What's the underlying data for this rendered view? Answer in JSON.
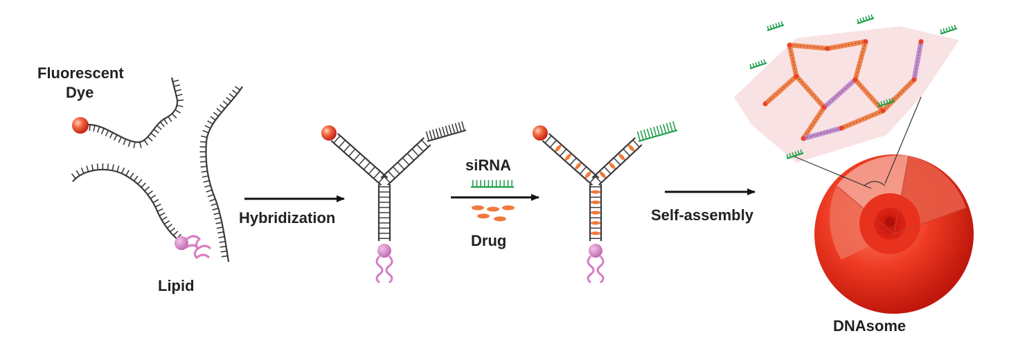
{
  "labels": {
    "fluorescent_dye_line1": "Fluorescent",
    "fluorescent_dye_line2": "Dye",
    "lipid": "Lipid",
    "hybridization": "Hybridization",
    "sirna": "siRNA",
    "drug": "Drug",
    "self_assembly": "Self-assembly",
    "dnasome": "DNAsome"
  },
  "colors": {
    "dna_strand": "#3a3a3a",
    "dye": "#e8442a",
    "lipid": "#d77cc4",
    "sirna": "#1e9e4a",
    "drug": "#f07a3c",
    "arrow": "#111111",
    "sphere": "#e8301c",
    "membrane": "#f3c9cc"
  }
}
